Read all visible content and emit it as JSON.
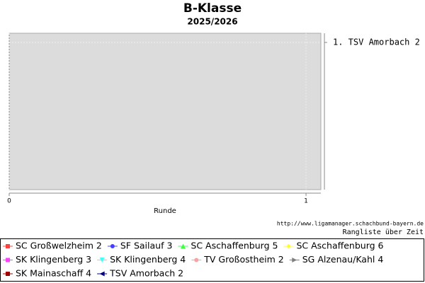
{
  "chart_data": {
    "type": "line",
    "title": "B-Klasse",
    "subtitle": "2025/2026",
    "x_label": "Runde",
    "source": "http://www.ligamanager.schachbund-bayern.de",
    "caption": "Rangliste über Zeit",
    "xlim": [
      0,
      1.05
    ],
    "xticks": [
      0,
      1
    ],
    "ylim": [
      5,
      0.75
    ],
    "y2ticks": [
      {
        "value": 1,
        "label": "1. TSV Amorbach 2"
      }
    ],
    "grid": true,
    "series": [
      {
        "name": "SC Großwelzheim 2",
        "color": "#ff4040",
        "marker": "square"
      },
      {
        "name": "SF Sailauf 3",
        "color": "#4040ff",
        "marker": "circle"
      },
      {
        "name": "SC Aschaffenburg 5",
        "color": "#40ff40",
        "marker": "triangle-up"
      },
      {
        "name": "SC Aschaffenburg 6",
        "color": "#ffff40",
        "marker": "diamond"
      },
      {
        "name": "SK Klingenberg 3",
        "color": "#ff40ff",
        "marker": "square"
      },
      {
        "name": "SK Klingenberg 4",
        "color": "#40ffff",
        "marker": "triangle-down"
      },
      {
        "name": "TV Großostheim 2",
        "color": "#ffa0a0",
        "marker": "circle"
      },
      {
        "name": "SG Alzenau/Kahl 4",
        "color": "#808080",
        "marker": "triangle-right"
      },
      {
        "name": "SK Mainaschaff 4",
        "color": "#a00000",
        "marker": "square"
      },
      {
        "name": "TSV Amorbach 2",
        "color": "#000080",
        "marker": "triangle-left"
      }
    ]
  }
}
